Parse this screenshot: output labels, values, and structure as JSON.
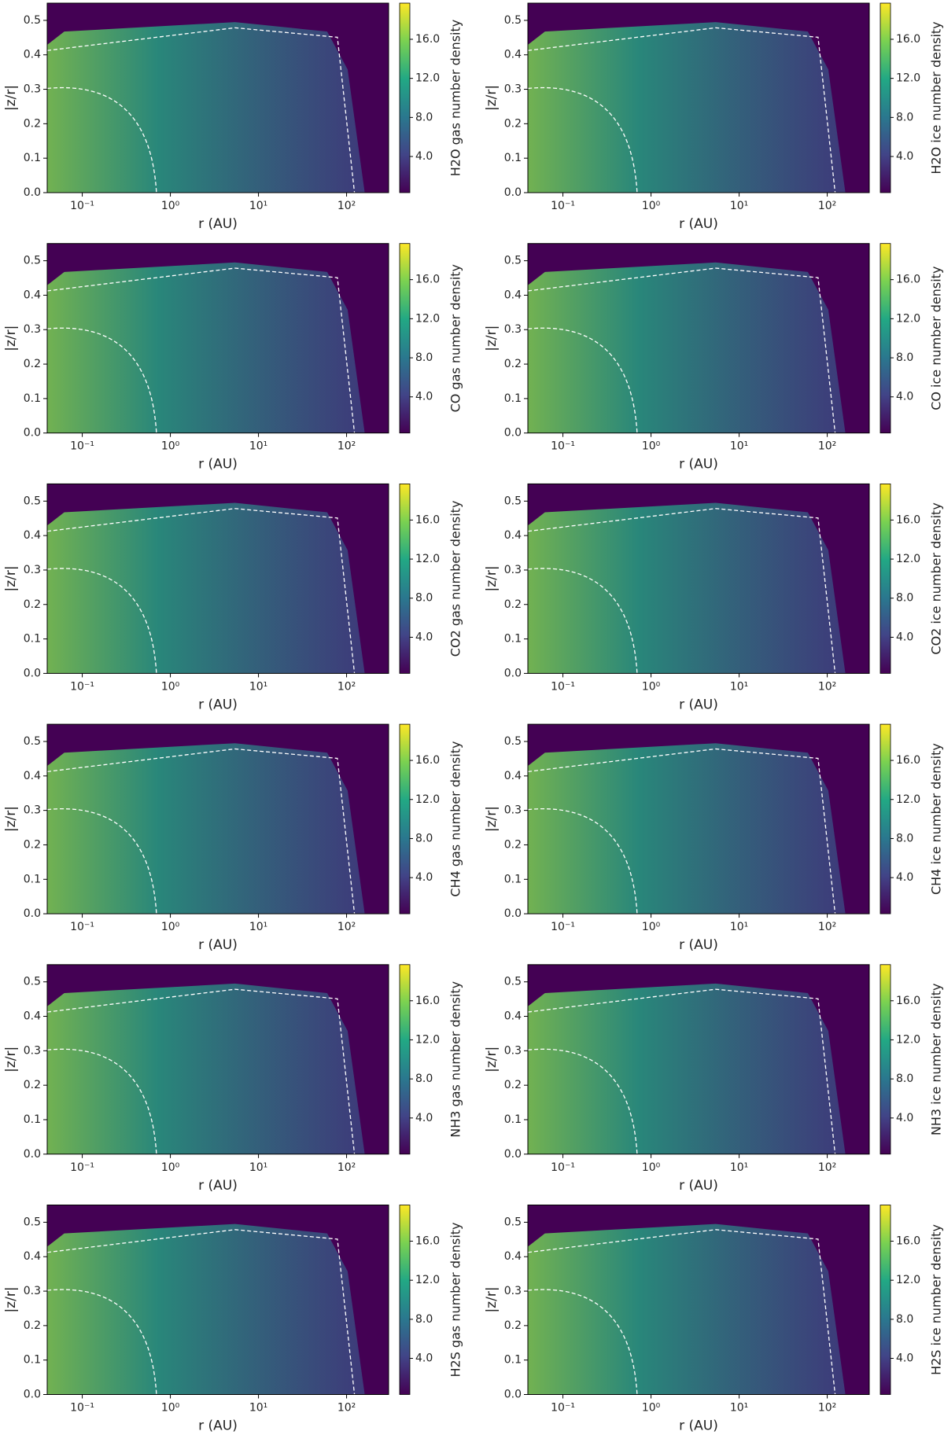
{
  "chart_data": [
    {
      "type": "heatmap",
      "xlabel": "r (AU)",
      "ylabel": "|z/r|",
      "colorbar_label": "H2O gas number density",
      "xscale": "log",
      "colormap": "viridis",
      "contours": true,
      "xlim": [
        0.04,
        300
      ],
      "ylim": [
        0,
        0.55
      ],
      "clim": [
        0.3,
        19.7
      ],
      "xticks": [
        {
          "value": 0.1,
          "label": "10⁻¹"
        },
        {
          "value": 1,
          "label": "10⁰"
        },
        {
          "value": 10,
          "label": "10¹"
        },
        {
          "value": 100,
          "label": "10²"
        }
      ],
      "yticks": [
        {
          "value": 0,
          "label": "0.0"
        },
        0.1,
        0.2,
        0.3,
        0.4,
        0.5
      ],
      "cticks": [
        {
          "value": 4,
          "label": "4.0"
        },
        {
          "value": 8,
          "label": "8.0"
        },
        {
          "value": 12,
          "label": "12.0"
        },
        {
          "value": 16,
          "label": "16.0"
        }
      ]
    },
    {
      "type": "heatmap",
      "xlabel": "r (AU)",
      "ylabel": "|z/r|",
      "colorbar_label": "H2O ice number density",
      "xscale": "log",
      "colormap": "viridis",
      "contours": true,
      "xlim": [
        0.04,
        300
      ],
      "ylim": [
        0,
        0.55
      ],
      "clim": [
        0.3,
        19.7
      ],
      "xticks": [
        {
          "value": 0.1,
          "label": "10⁻¹"
        },
        {
          "value": 1,
          "label": "10⁰"
        },
        {
          "value": 10,
          "label": "10¹"
        },
        {
          "value": 100,
          "label": "10²"
        }
      ],
      "yticks": [
        {
          "value": 0,
          "label": "0.0"
        },
        0.1,
        0.2,
        0.3,
        0.4,
        0.5
      ],
      "cticks": [
        {
          "value": 4,
          "label": "4.0"
        },
        {
          "value": 8,
          "label": "8.0"
        },
        {
          "value": 12,
          "label": "12.0"
        },
        {
          "value": 16,
          "label": "16.0"
        }
      ]
    },
    {
      "type": "heatmap",
      "xlabel": "r (AU)",
      "ylabel": "|z/r|",
      "colorbar_label": "CO gas number density",
      "xscale": "log",
      "colormap": "viridis",
      "contours": true,
      "xlim": [
        0.04,
        300
      ],
      "ylim": [
        0,
        0.55
      ],
      "clim": [
        0.3,
        19.7
      ],
      "xticks": [
        {
          "value": 0.1,
          "label": "10⁻¹"
        },
        {
          "value": 1,
          "label": "10⁰"
        },
        {
          "value": 10,
          "label": "10¹"
        },
        {
          "value": 100,
          "label": "10²"
        }
      ],
      "yticks": [
        {
          "value": 0,
          "label": "0.0"
        },
        0.1,
        0.2,
        0.3,
        0.4,
        0.5
      ],
      "cticks": [
        {
          "value": 4,
          "label": "4.0"
        },
        {
          "value": 8,
          "label": "8.0"
        },
        {
          "value": 12,
          "label": "12.0"
        },
        {
          "value": 16,
          "label": "16.0"
        }
      ]
    },
    {
      "type": "heatmap",
      "xlabel": "r (AU)",
      "ylabel": "|z/r|",
      "colorbar_label": "CO ice number density",
      "xscale": "log",
      "colormap": "viridis",
      "contours": true,
      "xlim": [
        0.04,
        300
      ],
      "ylim": [
        0,
        0.55
      ],
      "clim": [
        0.3,
        19.7
      ],
      "xticks": [
        {
          "value": 0.1,
          "label": "10⁻¹"
        },
        {
          "value": 1,
          "label": "10⁰"
        },
        {
          "value": 10,
          "label": "10¹"
        },
        {
          "value": 100,
          "label": "10²"
        }
      ],
      "yticks": [
        {
          "value": 0,
          "label": "0.0"
        },
        0.1,
        0.2,
        0.3,
        0.4,
        0.5
      ],
      "cticks": [
        {
          "value": 4,
          "label": "4.0"
        },
        {
          "value": 8,
          "label": "8.0"
        },
        {
          "value": 12,
          "label": "12.0"
        },
        {
          "value": 16,
          "label": "16.0"
        }
      ]
    },
    {
      "type": "heatmap",
      "xlabel": "r (AU)",
      "ylabel": "|z/r|",
      "colorbar_label": "CO2 gas number density",
      "xscale": "log",
      "colormap": "viridis",
      "contours": true,
      "xlim": [
        0.04,
        300
      ],
      "ylim": [
        0,
        0.55
      ],
      "clim": [
        0.3,
        19.7
      ],
      "xticks": [
        {
          "value": 0.1,
          "label": "10⁻¹"
        },
        {
          "value": 1,
          "label": "10⁰"
        },
        {
          "value": 10,
          "label": "10¹"
        },
        {
          "value": 100,
          "label": "10²"
        }
      ],
      "yticks": [
        {
          "value": 0,
          "label": "0.0"
        },
        0.1,
        0.2,
        0.3,
        0.4,
        0.5
      ],
      "cticks": [
        {
          "value": 4,
          "label": "4.0"
        },
        {
          "value": 8,
          "label": "8.0"
        },
        {
          "value": 12,
          "label": "12.0"
        },
        {
          "value": 16,
          "label": "16.0"
        }
      ]
    },
    {
      "type": "heatmap",
      "xlabel": "r (AU)",
      "ylabel": "|z/r|",
      "colorbar_label": "CO2 ice number density",
      "xscale": "log",
      "colormap": "viridis",
      "contours": true,
      "xlim": [
        0.04,
        300
      ],
      "ylim": [
        0,
        0.55
      ],
      "clim": [
        0.3,
        19.7
      ],
      "xticks": [
        {
          "value": 0.1,
          "label": "10⁻¹"
        },
        {
          "value": 1,
          "label": "10⁰"
        },
        {
          "value": 10,
          "label": "10¹"
        },
        {
          "value": 100,
          "label": "10²"
        }
      ],
      "yticks": [
        {
          "value": 0,
          "label": "0.0"
        },
        0.1,
        0.2,
        0.3,
        0.4,
        0.5
      ],
      "cticks": [
        {
          "value": 4,
          "label": "4.0"
        },
        {
          "value": 8,
          "label": "8.0"
        },
        {
          "value": 12,
          "label": "12.0"
        },
        {
          "value": 16,
          "label": "16.0"
        }
      ]
    },
    {
      "type": "heatmap",
      "xlabel": "r (AU)",
      "ylabel": "|z/r|",
      "colorbar_label": "CH4 gas number density",
      "xscale": "log",
      "colormap": "viridis",
      "contours": true,
      "xlim": [
        0.04,
        300
      ],
      "ylim": [
        0,
        0.55
      ],
      "clim": [
        0.3,
        19.7
      ],
      "xticks": [
        {
          "value": 0.1,
          "label": "10⁻¹"
        },
        {
          "value": 1,
          "label": "10⁰"
        },
        {
          "value": 10,
          "label": "10¹"
        },
        {
          "value": 100,
          "label": "10²"
        }
      ],
      "yticks": [
        {
          "value": 0,
          "label": "0.0"
        },
        0.1,
        0.2,
        0.3,
        0.4,
        0.5
      ],
      "cticks": [
        {
          "value": 4,
          "label": "4.0"
        },
        {
          "value": 8,
          "label": "8.0"
        },
        {
          "value": 12,
          "label": "12.0"
        },
        {
          "value": 16,
          "label": "16.0"
        }
      ]
    },
    {
      "type": "heatmap",
      "xlabel": "r (AU)",
      "ylabel": "|z/r|",
      "colorbar_label": "CH4 ice number density",
      "xscale": "log",
      "colormap": "viridis",
      "contours": true,
      "xlim": [
        0.04,
        300
      ],
      "ylim": [
        0,
        0.55
      ],
      "clim": [
        0.3,
        19.7
      ],
      "xticks": [
        {
          "value": 0.1,
          "label": "10⁻¹"
        },
        {
          "value": 1,
          "label": "10⁰"
        },
        {
          "value": 10,
          "label": "10¹"
        },
        {
          "value": 100,
          "label": "10²"
        }
      ],
      "yticks": [
        {
          "value": 0,
          "label": "0.0"
        },
        0.1,
        0.2,
        0.3,
        0.4,
        0.5
      ],
      "cticks": [
        {
          "value": 4,
          "label": "4.0"
        },
        {
          "value": 8,
          "label": "8.0"
        },
        {
          "value": 12,
          "label": "12.0"
        },
        {
          "value": 16,
          "label": "16.0"
        }
      ]
    },
    {
      "type": "heatmap",
      "xlabel": "r (AU)",
      "ylabel": "|z/r|",
      "colorbar_label": "NH3 gas number density",
      "xscale": "log",
      "colormap": "viridis",
      "contours": true,
      "xlim": [
        0.04,
        300
      ],
      "ylim": [
        0,
        0.55
      ],
      "clim": [
        0.3,
        19.7
      ],
      "xticks": [
        {
          "value": 0.1,
          "label": "10⁻¹"
        },
        {
          "value": 1,
          "label": "10⁰"
        },
        {
          "value": 10,
          "label": "10¹"
        },
        {
          "value": 100,
          "label": "10²"
        }
      ],
      "yticks": [
        {
          "value": 0,
          "label": "0.0"
        },
        0.1,
        0.2,
        0.3,
        0.4,
        0.5
      ],
      "cticks": [
        {
          "value": 4,
          "label": "4.0"
        },
        {
          "value": 8,
          "label": "8.0"
        },
        {
          "value": 12,
          "label": "12.0"
        },
        {
          "value": 16,
          "label": "16.0"
        }
      ]
    },
    {
      "type": "heatmap",
      "xlabel": "r (AU)",
      "ylabel": "|z/r|",
      "colorbar_label": "NH3 ice number density",
      "xscale": "log",
      "colormap": "viridis",
      "contours": true,
      "xlim": [
        0.04,
        300
      ],
      "ylim": [
        0,
        0.55
      ],
      "clim": [
        0.3,
        19.7
      ],
      "xticks": [
        {
          "value": 0.1,
          "label": "10⁻¹"
        },
        {
          "value": 1,
          "label": "10⁰"
        },
        {
          "value": 10,
          "label": "10¹"
        },
        {
          "value": 100,
          "label": "10²"
        }
      ],
      "yticks": [
        {
          "value": 0,
          "label": "0.0"
        },
        0.1,
        0.2,
        0.3,
        0.4,
        0.5
      ],
      "cticks": [
        {
          "value": 4,
          "label": "4.0"
        },
        {
          "value": 8,
          "label": "8.0"
        },
        {
          "value": 12,
          "label": "12.0"
        },
        {
          "value": 16,
          "label": "16.0"
        }
      ]
    },
    {
      "type": "heatmap",
      "xlabel": "r (AU)",
      "ylabel": "|z/r|",
      "colorbar_label": "H2S gas number density",
      "xscale": "log",
      "colormap": "viridis",
      "contours": true,
      "xlim": [
        0.04,
        300
      ],
      "ylim": [
        0,
        0.55
      ],
      "clim": [
        0.3,
        19.7
      ],
      "xticks": [
        {
          "value": 0.1,
          "label": "10⁻¹"
        },
        {
          "value": 1,
          "label": "10⁰"
        },
        {
          "value": 10,
          "label": "10¹"
        },
        {
          "value": 100,
          "label": "10²"
        }
      ],
      "yticks": [
        {
          "value": 0,
          "label": "0.0"
        },
        0.1,
        0.2,
        0.3,
        0.4,
        0.5
      ],
      "cticks": [
        {
          "value": 4,
          "label": "4.0"
        },
        {
          "value": 8,
          "label": "8.0"
        },
        {
          "value": 12,
          "label": "12.0"
        },
        {
          "value": 16,
          "label": "16.0"
        }
      ]
    },
    {
      "type": "heatmap",
      "xlabel": "r (AU)",
      "ylabel": "|z/r|",
      "colorbar_label": "H2S ice number density",
      "xscale": "log",
      "colormap": "viridis",
      "contours": true,
      "xlim": [
        0.04,
        300
      ],
      "ylim": [
        0,
        0.55
      ],
      "clim": [
        0.3,
        19.7
      ],
      "xticks": [
        {
          "value": 0.1,
          "label": "10⁻¹"
        },
        {
          "value": 1,
          "label": "10⁰"
        },
        {
          "value": 10,
          "label": "10¹"
        },
        {
          "value": 100,
          "label": "10²"
        }
      ],
      "yticks": [
        {
          "value": 0,
          "label": "0.0"
        },
        0.1,
        0.2,
        0.3,
        0.4,
        0.5
      ],
      "cticks": [
        {
          "value": 4,
          "label": "4.0"
        },
        {
          "value": 8,
          "label": "8.0"
        },
        {
          "value": 12,
          "label": "12.0"
        },
        {
          "value": 16,
          "label": "16.0"
        }
      ]
    }
  ]
}
